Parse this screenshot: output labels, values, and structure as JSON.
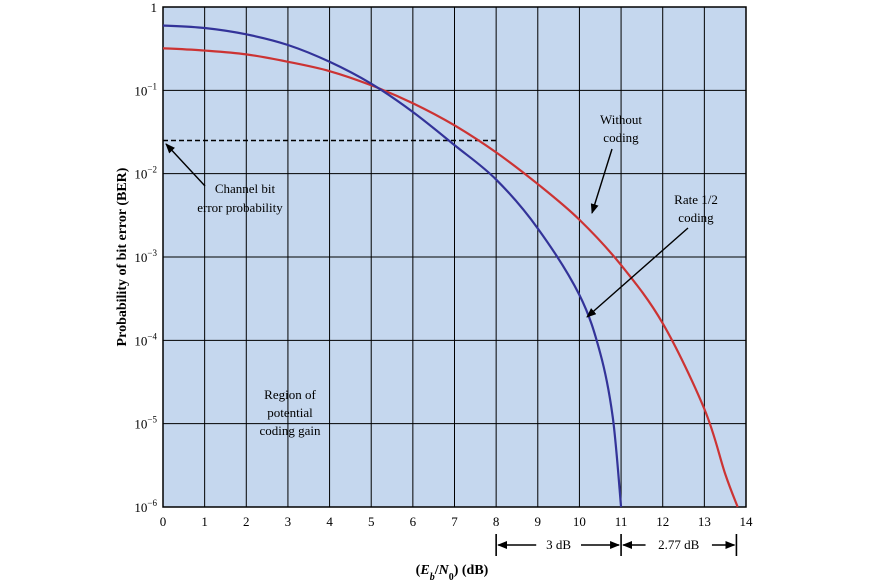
{
  "chart_data": {
    "type": "line",
    "title": "",
    "xlabel": "(Eb/N0) (dB)",
    "xlabel_parts": {
      "open": "(",
      "e": "E",
      "e_sub": "b",
      "slash": "/",
      "n": "N",
      "n_sub": "0",
      "close": ")",
      "unit": " (dB)"
    },
    "ylabel": "Probability of bit error (BER)",
    "xlim": [
      0,
      14
    ],
    "ylim": [
      1e-06,
      1
    ],
    "yscale": "log",
    "grid": true,
    "xticks": [
      "0",
      "1",
      "2",
      "3",
      "4",
      "5",
      "6",
      "7",
      "8",
      "9",
      "10",
      "11",
      "12",
      "13",
      "14"
    ],
    "yticks": [
      {
        "base": "1",
        "exp": ""
      },
      {
        "base": "10",
        "exp": "−1"
      },
      {
        "base": "10",
        "exp": "−2"
      },
      {
        "base": "10",
        "exp": "−3"
      },
      {
        "base": "10",
        "exp": "−4"
      },
      {
        "base": "10",
        "exp": "−5"
      },
      {
        "base": "10",
        "exp": "−6"
      }
    ],
    "series": [
      {
        "name": "Without coding",
        "color": "#cc3333",
        "x": [
          0,
          1,
          2,
          3,
          4,
          5,
          6,
          7,
          8,
          9,
          10,
          11,
          12,
          13,
          13.5,
          13.8
        ],
        "y": [
          0.32,
          0.3,
          0.27,
          0.22,
          0.17,
          0.115,
          0.07,
          0.038,
          0.018,
          0.0075,
          0.0028,
          0.0008,
          0.00016,
          1.5e-05,
          2.5e-06,
          1e-06
        ]
      },
      {
        "name": "Rate 1/2 coding",
        "color": "#333399",
        "x": [
          0,
          1,
          2,
          3,
          4,
          5,
          6,
          7,
          8,
          9,
          10,
          10.5,
          10.8,
          11.0
        ],
        "y": [
          0.6,
          0.56,
          0.47,
          0.35,
          0.22,
          0.12,
          0.055,
          0.022,
          0.0085,
          0.0022,
          0.00035,
          7e-05,
          1.2e-05,
          1e-06
        ]
      }
    ],
    "reference_line": {
      "style": "dashed",
      "y": 0.025,
      "x": [
        0,
        8
      ]
    },
    "annotations": {
      "channel": {
        "line1": "Channel bit",
        "line2": "error probability"
      },
      "without": {
        "line1": "Without",
        "line2": "coding"
      },
      "rate": {
        "line1": "Rate 1/2",
        "line2": "coding"
      },
      "region": {
        "line1": "Region of",
        "line2": "potential",
        "line3": "coding gain"
      }
    },
    "dimensions": [
      {
        "label": "3 dB",
        "from": 8,
        "to": 11
      },
      {
        "label": "2.77 dB",
        "from": 11,
        "to": 13.77
      }
    ]
  }
}
